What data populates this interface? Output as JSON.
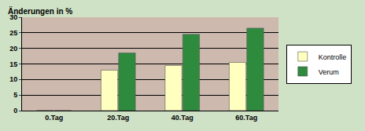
{
  "chart_data": {
    "type": "bar",
    "y_label": "Änderungen in %",
    "categories": [
      "0.Tag",
      "20.Tag",
      "40.Tag",
      "60.Tag"
    ],
    "series": [
      {
        "name": "Kontrolle",
        "color": "#ffffc0",
        "values": [
          0,
          13,
          14.5,
          15.5
        ]
      },
      {
        "name": "Verum",
        "color": "#2e8b3e",
        "values": [
          0,
          18.5,
          24.5,
          26.5
        ]
      }
    ],
    "ylim": [
      0,
      30
    ],
    "yticks": [
      0,
      5,
      10,
      15,
      20,
      25,
      30
    ],
    "grid": true,
    "legend": "right"
  }
}
